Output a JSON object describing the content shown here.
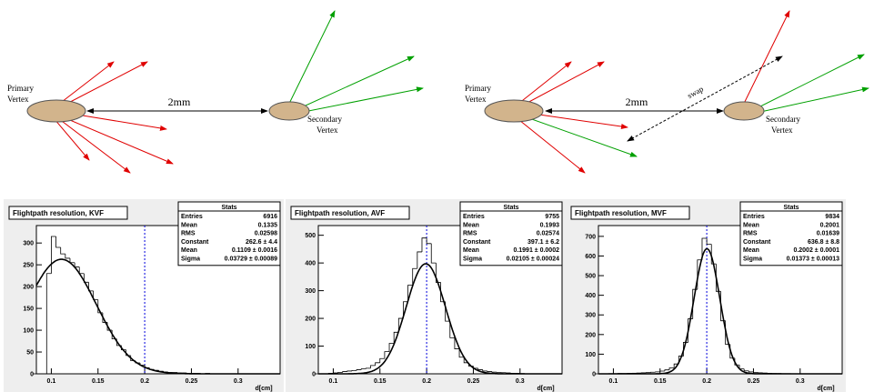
{
  "diagrams": [
    {
      "primary_label": [
        "Primary",
        "Vertex"
      ],
      "distance": "2mm",
      "secondary_label": [
        "Secondary",
        "Vertex"
      ]
    },
    {
      "primary_label": [
        "Primary",
        "Vertex"
      ],
      "distance": "2mm",
      "secondary_label": [
        "Secondary",
        "Vertex"
      ],
      "swap": "swap"
    }
  ],
  "chart_data": [
    {
      "type": "histogram",
      "title": "Flightpath resolution, KVF",
      "xlabel": "d[cm]",
      "stats_title": "Stats",
      "stats": [
        {
          "label": "Entries",
          "value": 6916
        },
        {
          "label": "Mean",
          "value": 0.1335
        },
        {
          "label": "RMS",
          "value": 0.02598
        },
        {
          "label": "Constant",
          "value": {
            "value": 262.6,
            "label": "262.6 ± 4.4"
          }
        },
        {
          "label": "Mean",
          "value": {
            "value": 0.1109,
            "label": "0.1109 ± 0.0016"
          }
        },
        {
          "label": "Sigma",
          "value": {
            "value": 0.03729,
            "label": "0.03729 ± 0.00089"
          }
        }
      ],
      "bins": [
        0.08,
        0.085,
        0.09,
        0.095,
        0.1,
        0.105,
        0.11,
        0.115,
        0.12,
        0.125,
        0.13,
        0.135,
        0.14,
        0.145,
        0.15,
        0.155,
        0.16,
        0.165,
        0.17,
        0.175,
        0.18,
        0.185,
        0.19,
        0.195,
        0.2,
        0.205,
        0.21,
        0.215,
        0.22,
        0.225,
        0.23,
        0.235,
        0.24,
        0.245,
        0.25,
        0.255,
        0.26,
        0.265,
        0.27,
        0.275,
        0.28,
        0.285,
        0.29,
        0.295,
        0.3,
        0.305,
        0.31,
        0.315,
        0.32,
        0.325,
        0.33
      ],
      "counts": [
        0,
        0,
        0,
        230,
        315,
        290,
        275,
        265,
        255,
        245,
        230,
        210,
        190,
        170,
        140,
        118,
        100,
        80,
        65,
        55,
        42,
        30,
        25,
        20,
        14,
        10,
        8,
        6,
        4,
        3,
        3,
        2,
        2,
        1,
        1,
        1,
        0,
        1,
        0,
        0,
        0,
        0,
        0,
        0,
        0,
        0,
        0,
        0,
        0,
        0
      ],
      "marker_x": 0.2,
      "xlim": [
        0.084,
        0.345
      ],
      "xticks": [
        0.1,
        0.15,
        0.2,
        0.25,
        0.3
      ],
      "ylim": [
        0,
        340
      ],
      "yticks": [
        0,
        50,
        100,
        150,
        200,
        250,
        300
      ]
    },
    {
      "type": "histogram",
      "title": "Flightpath resolution, AVF",
      "xlabel": "d[cm]",
      "stats_title": "Stats",
      "stats": [
        {
          "label": "Entries",
          "value": 9755
        },
        {
          "label": "Mean",
          "value": 0.1993
        },
        {
          "label": "RMS",
          "value": 0.02574
        },
        {
          "label": "Constant",
          "value": {
            "value": 397.1,
            "label": "397.1 ± 6.2"
          }
        },
        {
          "label": "Mean",
          "value": {
            "value": 0.1991,
            "label": "0.1991 ± 0.0002"
          }
        },
        {
          "label": "Sigma",
          "value": {
            "value": 0.02105,
            "label": "0.02105 ± 0.00024"
          }
        }
      ],
      "bins": [
        0.08,
        0.085,
        0.09,
        0.095,
        0.1,
        0.105,
        0.11,
        0.115,
        0.12,
        0.125,
        0.13,
        0.135,
        0.14,
        0.145,
        0.15,
        0.155,
        0.16,
        0.165,
        0.17,
        0.175,
        0.18,
        0.185,
        0.19,
        0.195,
        0.2,
        0.205,
        0.21,
        0.215,
        0.22,
        0.225,
        0.23,
        0.235,
        0.24,
        0.245,
        0.25,
        0.255,
        0.26,
        0.265,
        0.27,
        0.275,
        0.28,
        0.285,
        0.29,
        0.295,
        0.3,
        0.305,
        0.31,
        0.315,
        0.32,
        0.325,
        0.33
      ],
      "counts": [
        0,
        0,
        0,
        2,
        3,
        5,
        8,
        10,
        12,
        15,
        18,
        20,
        30,
        40,
        55,
        80,
        110,
        150,
        200,
        260,
        320,
        380,
        440,
        490,
        470,
        400,
        330,
        260,
        190,
        130,
        90,
        60,
        40,
        28,
        20,
        15,
        10,
        8,
        6,
        5,
        4,
        3,
        2,
        2,
        1,
        0,
        0,
        0,
        0,
        0
      ],
      "marker_x": 0.2,
      "xlim": [
        0.084,
        0.345
      ],
      "xticks": [
        0.1,
        0.15,
        0.2,
        0.25,
        0.3
      ],
      "ylim": [
        0,
        535
      ],
      "yticks": [
        0,
        100,
        200,
        300,
        400,
        500
      ]
    },
    {
      "type": "histogram",
      "title": "Flightpath resolution, MVF",
      "xlabel": "d[cm]",
      "stats_title": "Stats",
      "stats": [
        {
          "label": "Entries",
          "value": 9834
        },
        {
          "label": "Mean",
          "value": 0.2001
        },
        {
          "label": "RMS",
          "value": 0.01639
        },
        {
          "label": "Constant",
          "value": {
            "value": 636.8,
            "label": "636.8 ± 8.8"
          }
        },
        {
          "label": "Mean",
          "value": {
            "value": 0.2002,
            "label": "0.2002 ± 0.0001"
          }
        },
        {
          "label": "Sigma",
          "value": {
            "value": 0.01373,
            "label": "0.01373 ± 0.00013"
          }
        }
      ],
      "bins": [
        0.08,
        0.085,
        0.09,
        0.095,
        0.1,
        0.105,
        0.11,
        0.115,
        0.12,
        0.125,
        0.13,
        0.135,
        0.14,
        0.145,
        0.15,
        0.155,
        0.16,
        0.165,
        0.17,
        0.175,
        0.18,
        0.185,
        0.19,
        0.195,
        0.2,
        0.205,
        0.21,
        0.215,
        0.22,
        0.225,
        0.23,
        0.235,
        0.24,
        0.245,
        0.25,
        0.255,
        0.26,
        0.265,
        0.27,
        0.275,
        0.28,
        0.285,
        0.29,
        0.295,
        0.3,
        0.305,
        0.31,
        0.315,
        0.32,
        0.325,
        0.33
      ],
      "counts": [
        0,
        0,
        0,
        1,
        1,
        2,
        2,
        3,
        3,
        4,
        5,
        6,
        8,
        10,
        14,
        20,
        30,
        50,
        90,
        160,
        280,
        430,
        580,
        690,
        660,
        560,
        420,
        270,
        150,
        80,
        45,
        25,
        15,
        10,
        7,
        5,
        4,
        3,
        2,
        2,
        1,
        1,
        0,
        0,
        0,
        0,
        0,
        0,
        0,
        0
      ],
      "marker_x": 0.2,
      "xlim": [
        0.084,
        0.345
      ],
      "xticks": [
        0.1,
        0.15,
        0.2,
        0.25,
        0.3
      ],
      "ylim": [
        0,
        755
      ],
      "yticks": [
        0,
        100,
        200,
        300,
        400,
        500,
        600,
        700
      ]
    }
  ]
}
